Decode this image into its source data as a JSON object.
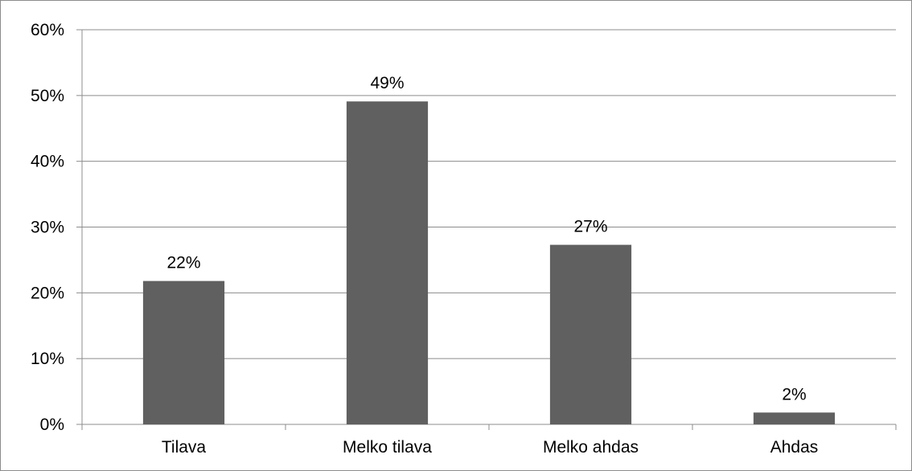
{
  "chart_data": {
    "type": "bar",
    "title": "",
    "xlabel": "",
    "ylabel": "",
    "categories": [
      "Tilava",
      "Melko tilava",
      "Melko ahdas",
      "Ahdas"
    ],
    "values": [
      21.8,
      49.1,
      27.3,
      1.8
    ],
    "data_labels": [
      "22%",
      "49%",
      "27%",
      "2%"
    ],
    "ylim": [
      0,
      60
    ],
    "y_ticks": [
      0,
      10,
      20,
      30,
      40,
      50,
      60
    ],
    "y_tick_labels": [
      "0%",
      "10%",
      "20%",
      "30%",
      "40%",
      "50%",
      "60%"
    ],
    "grid": true,
    "legend": "none",
    "colors": {
      "bar": "#606060",
      "grid": "#8c8c8c",
      "axis": "#8c8c8c"
    }
  }
}
